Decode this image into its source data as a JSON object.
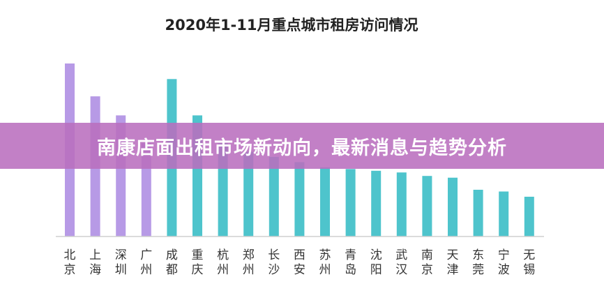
{
  "chart_data": {
    "type": "bar",
    "title": "2020年1-11月重点城市租房访问情况",
    "categories": [
      [
        "北",
        "京"
      ],
      [
        "上",
        "海"
      ],
      [
        "深",
        "圳"
      ],
      [
        "广",
        "州"
      ],
      [
        "成",
        "都"
      ],
      [
        "重",
        "庆"
      ],
      [
        "杭",
        "州"
      ],
      [
        "郑",
        "州"
      ],
      [
        "长",
        "沙"
      ],
      [
        "西",
        "安"
      ],
      [
        "苏",
        "州"
      ],
      [
        "青",
        "岛"
      ],
      [
        "沈",
        "阳"
      ],
      [
        "武",
        "汉"
      ],
      [
        "南",
        "京"
      ],
      [
        "天",
        "津"
      ],
      [
        "东",
        "莞"
      ],
      [
        "宁",
        "波"
      ],
      [
        "无",
        "锡"
      ]
    ],
    "values": [
      100,
      81,
      70,
      54,
      91,
      70,
      54,
      49,
      46,
      43,
      40,
      39,
      38,
      37,
      35,
      34,
      27,
      26,
      23
    ],
    "ylim": [
      0,
      100
    ],
    "grid": false,
    "colors": {
      "purple": "#b79ae6",
      "teal": "#4ec4cc"
    },
    "purple_count": 4
  },
  "banner": {
    "text": "南康店面出租市场新动向，最新消息与趋势分析"
  }
}
